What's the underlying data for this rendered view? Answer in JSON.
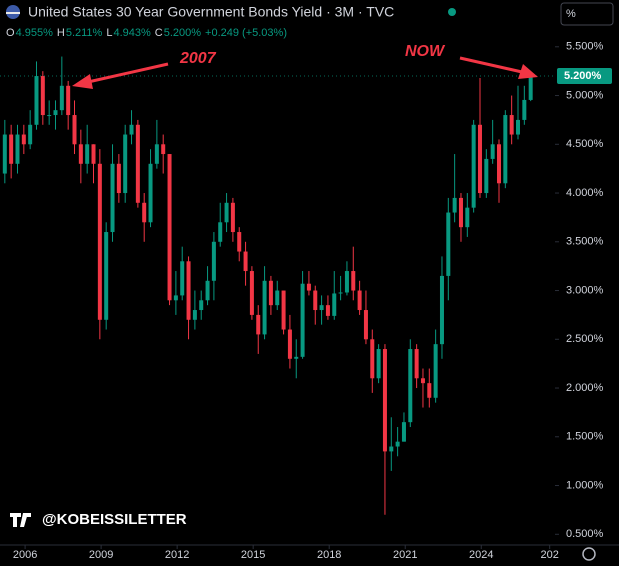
{
  "chart_data": {
    "type": "candlestick",
    "title": "United States 30 Year Government Bonds Yield · 3M · TVC",
    "legend": [
      {
        "key": "O",
        "value": "4.955%"
      },
      {
        "key": "H",
        "value": "5.211%"
      },
      {
        "key": "L",
        "value": "4.943%"
      },
      {
        "key": "C",
        "value": "5.200%"
      }
    ],
    "change": "+0.249 (+5.03%)",
    "scale_button": "%",
    "watermark": "@KOBEISSILETTER",
    "annotations": [
      "2007",
      "NOW"
    ],
    "last_price_label": "5.200%",
    "up_color": "#089981",
    "down_color": "#f23645",
    "x": [
      2005.2,
      2005.45,
      2005.7,
      2005.95,
      2006.2,
      2006.45,
      2006.7,
      2006.95,
      2007.2,
      2007.45,
      2007.7,
      2007.95,
      2008.2,
      2008.45,
      2008.7,
      2008.95,
      2009.2,
      2009.45,
      2009.7,
      2009.95,
      2010.2,
      2010.45,
      2010.7,
      2010.95,
      2011.2,
      2011.45,
      2011.7,
      2011.95,
      2012.2,
      2012.45,
      2012.7,
      2012.95,
      2013.2,
      2013.45,
      2013.7,
      2013.95,
      2014.2,
      2014.45,
      2014.7,
      2014.95,
      2015.2,
      2015.45,
      2015.7,
      2015.95,
      2016.2,
      2016.45,
      2016.7,
      2016.95,
      2017.2,
      2017.45,
      2017.7,
      2017.95,
      2018.2,
      2018.45,
      2018.7,
      2018.95,
      2019.2,
      2019.45,
      2019.7,
      2019.95,
      2020.2,
      2020.45,
      2020.7,
      2020.95,
      2021.2,
      2021.45,
      2021.7,
      2021.95,
      2022.2,
      2022.45,
      2022.7,
      2022.95,
      2023.2,
      2023.45,
      2023.7,
      2023.95,
      2024.2,
      2024.45,
      2024.7,
      2024.95,
      2025.2,
      2025.45,
      2025.7,
      2025.95
    ],
    "open": [
      4.2,
      4.6,
      4.3,
      4.6,
      4.5,
      4.7,
      5.2,
      4.8,
      4.8,
      4.85,
      5.1,
      4.8,
      4.5,
      4.3,
      4.5,
      4.3,
      2.7,
      3.6,
      4.3,
      4.0,
      4.6,
      4.7,
      3.9,
      3.7,
      4.3,
      4.5,
      4.4,
      2.9,
      2.95,
      3.3,
      2.7,
      2.8,
      2.9,
      3.1,
      3.5,
      3.7,
      3.9,
      3.6,
      3.4,
      3.2,
      2.75,
      2.55,
      3.1,
      2.85,
      3.0,
      2.6,
      2.3,
      2.32,
      3.07,
      3.0,
      2.8,
      2.85,
      2.74,
      2.97,
      2.98,
      3.2,
      3.0,
      2.8,
      2.5,
      2.1,
      2.4,
      1.35,
      1.4,
      1.45,
      1.65,
      2.4,
      2.1,
      2.05,
      1.9,
      2.45,
      3.15,
      3.8,
      3.95,
      3.65,
      3.85,
      4.7,
      4.0,
      4.35,
      4.5,
      4.1,
      4.8,
      4.6,
      4.75,
      4.955
    ],
    "high": [
      4.75,
      4.7,
      4.7,
      4.7,
      4.85,
      5.35,
      5.25,
      4.95,
      4.95,
      5.4,
      5.15,
      4.95,
      4.65,
      4.7,
      4.5,
      4.45,
      3.7,
      4.5,
      4.4,
      4.7,
      4.85,
      4.75,
      4.0,
      4.45,
      4.75,
      4.6,
      4.4,
      3.2,
      3.45,
      3.35,
      3.0,
      3.0,
      3.25,
      3.6,
      3.9,
      4.0,
      3.95,
      3.65,
      3.5,
      3.25,
      2.85,
      3.25,
      3.15,
      3.1,
      3.0,
      2.75,
      2.5,
      3.2,
      3.2,
      3.05,
      2.95,
      2.95,
      3.2,
      3.15,
      3.3,
      3.45,
      3.1,
      3.0,
      2.6,
      2.45,
      2.45,
      1.7,
      1.6,
      1.75,
      2.5,
      2.45,
      2.2,
      2.2,
      2.6,
      3.35,
      3.95,
      4.4,
      4.0,
      4.0,
      4.75,
      5.18,
      4.45,
      4.75,
      4.55,
      4.85,
      5.0,
      5.1,
      5.1,
      5.211
    ],
    "low": [
      4.1,
      4.15,
      4.2,
      4.4,
      4.45,
      4.65,
      4.7,
      4.7,
      4.65,
      4.8,
      4.65,
      4.4,
      4.1,
      4.2,
      4.1,
      2.5,
      2.6,
      3.5,
      3.9,
      3.9,
      4.5,
      3.85,
      3.5,
      3.65,
      4.25,
      4.2,
      2.85,
      2.75,
      2.9,
      2.5,
      2.6,
      2.7,
      2.85,
      2.9,
      3.45,
      3.6,
      3.5,
      3.3,
      3.05,
      2.7,
      2.35,
      2.5,
      2.75,
      2.8,
      2.55,
      2.2,
      2.1,
      2.3,
      2.95,
      2.65,
      2.65,
      2.7,
      2.7,
      2.9,
      2.95,
      2.9,
      2.75,
      2.45,
      1.95,
      2.05,
      0.7,
      1.15,
      1.3,
      1.45,
      1.6,
      2.0,
      1.8,
      1.8,
      1.85,
      2.3,
      2.9,
      3.7,
      3.5,
      3.55,
      3.8,
      3.95,
      3.95,
      4.3,
      3.9,
      4.05,
      4.5,
      4.55,
      4.7,
      4.943
    ],
    "close": [
      4.6,
      4.3,
      4.6,
      4.5,
      4.7,
      5.2,
      4.8,
      4.8,
      4.85,
      5.1,
      4.8,
      4.5,
      4.3,
      4.5,
      4.3,
      2.7,
      3.6,
      4.3,
      4.0,
      4.6,
      4.7,
      3.9,
      3.7,
      4.3,
      4.5,
      4.4,
      2.9,
      2.95,
      3.3,
      2.7,
      2.8,
      2.9,
      3.1,
      3.5,
      3.7,
      3.9,
      3.6,
      3.4,
      3.2,
      2.75,
      2.55,
      3.1,
      2.85,
      3.0,
      2.6,
      2.3,
      2.32,
      3.07,
      3.0,
      2.8,
      2.85,
      2.74,
      2.97,
      2.98,
      3.2,
      3.0,
      2.8,
      2.5,
      2.1,
      2.4,
      1.35,
      1.4,
      1.45,
      1.65,
      2.4,
      2.1,
      2.05,
      1.9,
      2.45,
      3.15,
      3.8,
      3.95,
      3.65,
      3.85,
      4.7,
      4.0,
      4.35,
      4.5,
      4.1,
      4.8,
      4.6,
      4.75,
      4.955,
      5.2
    ],
    "xlim": [
      2005.01,
      2026.91
    ],
    "ylim": [
      0.39,
      5.98
    ],
    "xticks": [
      2006,
      2009,
      2012,
      2015,
      2018,
      2021,
      2024,
      {
        "value": 2026.7,
        "label": "202"
      }
    ],
    "yticks": [
      {
        "value": 0.5,
        "label": "0.500%"
      },
      {
        "value": 1,
        "label": "1.000%"
      },
      {
        "value": 1.5,
        "label": "1.500%"
      },
      {
        "value": 2,
        "label": "2.000%"
      },
      {
        "value": 2.5,
        "label": "2.500%"
      },
      {
        "value": 3,
        "label": "3.000%"
      },
      {
        "value": 3.5,
        "label": "3.500%"
      },
      {
        "value": 4,
        "label": "4.000%"
      },
      {
        "value": 4.5,
        "label": "4.500%"
      },
      {
        "value": 5,
        "label": "5.000%"
      },
      {
        "value": 5.5,
        "label": "5.500%"
      }
    ],
    "grid": false
  }
}
